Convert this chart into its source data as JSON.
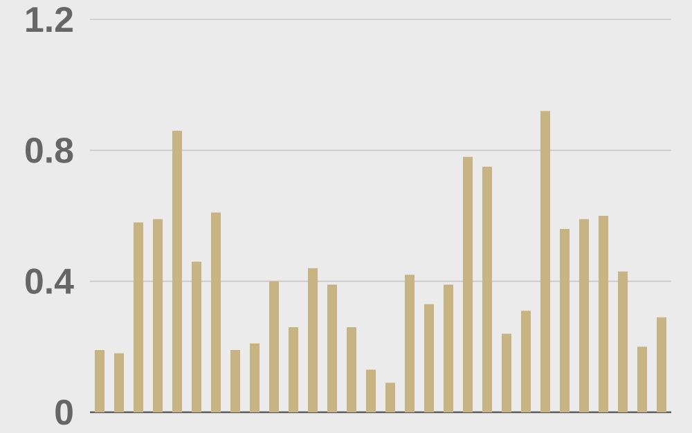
{
  "chart_data": {
    "type": "bar",
    "categories": [
      null,
      null,
      null,
      null,
      null,
      null,
      null,
      null,
      null,
      null,
      null,
      null,
      null,
      null,
      null,
      null,
      null,
      null,
      null,
      null,
      null,
      null,
      null,
      null,
      null,
      null,
      null,
      null,
      null,
      null
    ],
    "values": [
      0.19,
      0.18,
      0.58,
      0.59,
      0.86,
      0.46,
      0.61,
      0.19,
      0.21,
      0.4,
      0.26,
      0.44,
      0.39,
      0.26,
      0.13,
      0.09,
      0.42,
      0.33,
      0.39,
      0.78,
      0.75,
      0.24,
      0.31,
      0.92,
      0.56,
      0.59,
      0.6,
      0.43,
      0.2,
      0.29
    ],
    "color": "#c8b482",
    "ylim": [
      0,
      1.2
    ],
    "yticks": [
      0,
      0.4,
      0.8,
      1.2
    ],
    "grid": "y"
  }
}
